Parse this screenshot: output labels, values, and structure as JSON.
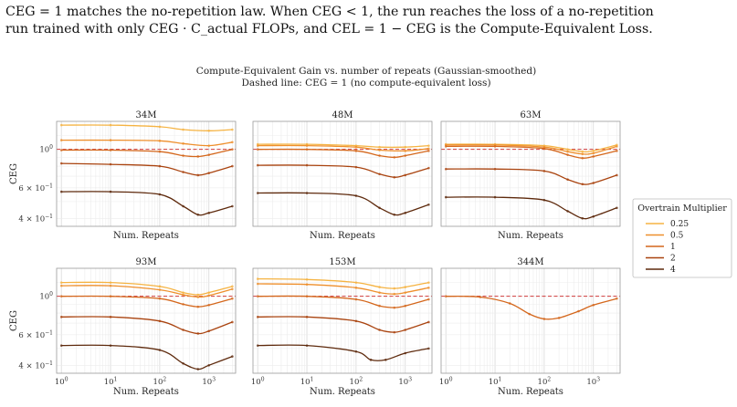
{
  "caption": {
    "line1": "CEG = 1 matches the no-repetition law. When CEG < 1, the run reaches the loss of a no-repetition",
    "line2": "run trained with only CEG · C_actual FLOPs, and CEL = 1 − CEG is the Compute-Equivalent Loss."
  },
  "figure": {
    "title": "Compute-Equivalent Gain vs. number of repeats (Gaussian-smoothed)",
    "subtitle": "Dashed line: CEG = 1 (no compute-equivalent loss)"
  },
  "colors": {
    "0.25": "#f5b342",
    "0.5": "#ee8f2c",
    "1": "#d4671c",
    "2": "#a9430f",
    "4": "#5e2a0d",
    "reference_line": "#d03a3a",
    "grid": "#dcdcdc",
    "panel_bg": "#ffffff"
  },
  "chart_data": [
    {
      "type": "line",
      "title": "34M",
      "xlabel": "Num. Repeats",
      "ylabel": "CEG",
      "x_scale": "log",
      "y_scale": "log",
      "xlim": [
        0.8,
        3500
      ],
      "ylim": [
        0.36,
        1.45
      ],
      "reference_line": {
        "y": 1,
        "style": "dashed"
      },
      "show_xtick_labels": false,
      "show_ytick_labels": true,
      "legend_title": "Overtrain Multiplier",
      "series": [
        {
          "name": "0.25",
          "x": [
            1,
            10,
            100,
            300,
            1000,
            3000
          ],
          "y": [
            1.38,
            1.38,
            1.35,
            1.3,
            1.28,
            1.3
          ]
        },
        {
          "name": "0.5",
          "x": [
            1,
            10,
            100,
            300,
            1000,
            3000
          ],
          "y": [
            1.13,
            1.13,
            1.12,
            1.08,
            1.05,
            1.1
          ]
        },
        {
          "name": "1",
          "x": [
            1,
            10,
            100,
            300,
            600,
            1000,
            3000
          ],
          "y": [
            0.99,
            0.99,
            0.97,
            0.92,
            0.91,
            0.93,
            1.0
          ]
        },
        {
          "name": "2",
          "x": [
            1,
            10,
            100,
            300,
            600,
            1000,
            3000
          ],
          "y": [
            0.83,
            0.82,
            0.8,
            0.74,
            0.71,
            0.73,
            0.8
          ]
        },
        {
          "name": "4",
          "x": [
            1,
            10,
            100,
            300,
            600,
            1000,
            3000
          ],
          "y": [
            0.57,
            0.57,
            0.55,
            0.47,
            0.42,
            0.43,
            0.47
          ]
        }
      ]
    },
    {
      "type": "line",
      "title": "48M",
      "xlabel": "Num. Repeats",
      "ylabel": "",
      "x_scale": "log",
      "y_scale": "log",
      "xlim": [
        0.8,
        3500
      ],
      "ylim": [
        0.36,
        1.45
      ],
      "reference_line": {
        "y": 1,
        "style": "dashed"
      },
      "show_xtick_labels": false,
      "show_ytick_labels": false,
      "series": [
        {
          "name": "0.25",
          "x": [
            1,
            10,
            100,
            300,
            1000,
            3000
          ],
          "y": [
            1.07,
            1.07,
            1.05,
            1.03,
            1.03,
            1.05
          ]
        },
        {
          "name": "0.5",
          "x": [
            1,
            10,
            100,
            300,
            1000,
            3000
          ],
          "y": [
            1.05,
            1.05,
            1.03,
            0.99,
            0.98,
            1.01
          ]
        },
        {
          "name": "1",
          "x": [
            1,
            10,
            100,
            300,
            600,
            1000,
            3000
          ],
          "y": [
            1.0,
            1.0,
            0.98,
            0.92,
            0.9,
            0.92,
            0.98
          ]
        },
        {
          "name": "2",
          "x": [
            1,
            10,
            100,
            300,
            600,
            1000,
            3000
          ],
          "y": [
            0.81,
            0.81,
            0.79,
            0.72,
            0.69,
            0.71,
            0.78
          ]
        },
        {
          "name": "4",
          "x": [
            1,
            10,
            100,
            300,
            600,
            1000,
            3000
          ],
          "y": [
            0.56,
            0.56,
            0.54,
            0.46,
            0.42,
            0.43,
            0.48
          ]
        }
      ]
    },
    {
      "type": "line",
      "title": "63M",
      "xlabel": "Num. Repeats",
      "ylabel": "",
      "x_scale": "log",
      "y_scale": "log",
      "xlim": [
        0.8,
        3500
      ],
      "ylim": [
        0.36,
        1.45
      ],
      "reference_line": {
        "y": 1,
        "style": "dashed"
      },
      "show_xtick_labels": false,
      "show_ytick_labels": false,
      "series": [
        {
          "name": "0.25",
          "x": [
            1,
            10,
            100,
            300,
            600,
            1000,
            3000
          ],
          "y": [
            1.07,
            1.07,
            1.05,
            1.0,
            0.97,
            0.98,
            1.06
          ]
        },
        {
          "name": "0.5",
          "x": [
            1,
            10,
            100,
            300,
            600,
            1000,
            3000
          ],
          "y": [
            1.06,
            1.06,
            1.03,
            0.97,
            0.94,
            0.95,
            1.04
          ]
        },
        {
          "name": "1",
          "x": [
            1,
            10,
            100,
            300,
            600,
            1000,
            3000
          ],
          "y": [
            1.04,
            1.04,
            1.01,
            0.93,
            0.89,
            0.91,
            0.98
          ]
        },
        {
          "name": "2",
          "x": [
            1,
            10,
            100,
            300,
            600,
            1000,
            3000
          ],
          "y": [
            0.77,
            0.77,
            0.75,
            0.67,
            0.63,
            0.64,
            0.71
          ]
        },
        {
          "name": "4",
          "x": [
            1,
            10,
            100,
            300,
            600,
            1000,
            3000
          ],
          "y": [
            0.53,
            0.53,
            0.51,
            0.44,
            0.4,
            0.41,
            0.46
          ]
        }
      ]
    },
    {
      "type": "line",
      "title": "93M",
      "xlabel": "Num. Repeats",
      "ylabel": "CEG",
      "x_scale": "log",
      "y_scale": "log",
      "xlim": [
        0.8,
        3500
      ],
      "ylim": [
        0.36,
        1.45
      ],
      "reference_line": {
        "y": 1,
        "style": "dashed"
      },
      "show_xtick_labels": true,
      "show_ytick_labels": true,
      "series": [
        {
          "name": "0.25",
          "x": [
            1,
            10,
            100,
            300,
            600,
            1000,
            3000
          ],
          "y": [
            1.2,
            1.2,
            1.14,
            1.05,
            1.02,
            1.05,
            1.14
          ]
        },
        {
          "name": "0.5",
          "x": [
            1,
            10,
            100,
            300,
            600,
            1000,
            3000
          ],
          "y": [
            1.15,
            1.15,
            1.09,
            1.02,
            0.99,
            1.01,
            1.1
          ]
        },
        {
          "name": "1",
          "x": [
            1,
            10,
            100,
            300,
            600,
            1000,
            3000
          ],
          "y": [
            1.0,
            1.0,
            0.97,
            0.9,
            0.87,
            0.89,
            0.97
          ]
        },
        {
          "name": "2",
          "x": [
            1,
            10,
            100,
            300,
            600,
            1000,
            3000
          ],
          "y": [
            0.76,
            0.76,
            0.72,
            0.64,
            0.61,
            0.63,
            0.71
          ]
        },
        {
          "name": "4",
          "x": [
            1,
            10,
            100,
            300,
            600,
            1000,
            3000
          ],
          "y": [
            0.52,
            0.52,
            0.49,
            0.41,
            0.38,
            0.4,
            0.45
          ]
        }
      ]
    },
    {
      "type": "line",
      "title": "153M",
      "xlabel": "Num. Repeats",
      "ylabel": "",
      "x_scale": "log",
      "y_scale": "log",
      "xlim": [
        0.8,
        3500
      ],
      "ylim": [
        0.36,
        1.45
      ],
      "reference_line": {
        "y": 1,
        "style": "dashed"
      },
      "show_xtick_labels": true,
      "show_ytick_labels": false,
      "series": [
        {
          "name": "0.25",
          "x": [
            1,
            10,
            100,
            300,
            600,
            1000,
            3000
          ],
          "y": [
            1.26,
            1.25,
            1.2,
            1.13,
            1.11,
            1.13,
            1.2
          ]
        },
        {
          "name": "0.5",
          "x": [
            1,
            10,
            100,
            300,
            600,
            1000,
            3000
          ],
          "y": [
            1.18,
            1.17,
            1.12,
            1.05,
            1.03,
            1.05,
            1.12
          ]
        },
        {
          "name": "1",
          "x": [
            1,
            10,
            100,
            300,
            600,
            1000,
            3000
          ],
          "y": [
            1.0,
            1.0,
            0.96,
            0.88,
            0.86,
            0.88,
            0.96
          ]
        },
        {
          "name": "2",
          "x": [
            1,
            10,
            100,
            300,
            600,
            1000,
            3000
          ],
          "y": [
            0.76,
            0.76,
            0.72,
            0.64,
            0.62,
            0.64,
            0.71
          ]
        },
        {
          "name": "4",
          "x": [
            1,
            10,
            100,
            200,
            400,
            1000,
            3000
          ],
          "y": [
            0.52,
            0.52,
            0.48,
            0.43,
            0.43,
            0.47,
            0.5
          ]
        }
      ]
    },
    {
      "type": "line",
      "title": "344M",
      "xlabel": "Num. Repeats",
      "ylabel": "",
      "x_scale": "log",
      "y_scale": "log",
      "xlim": [
        0.8,
        3500
      ],
      "ylim": [
        0.36,
        1.45
      ],
      "reference_line": {
        "y": 1,
        "style": "dashed"
      },
      "show_xtick_labels": true,
      "show_ytick_labels": false,
      "series": [
        {
          "name": "1",
          "x": [
            1,
            5,
            20,
            50,
            100,
            200,
            500,
            1000,
            3000
          ],
          "y": [
            1.0,
            0.99,
            0.91,
            0.79,
            0.74,
            0.75,
            0.82,
            0.89,
            0.97
          ]
        }
      ]
    }
  ],
  "legend": {
    "title": "Overtrain Multiplier",
    "entries": [
      "0.25",
      "0.5",
      "1",
      "2",
      "4"
    ]
  }
}
